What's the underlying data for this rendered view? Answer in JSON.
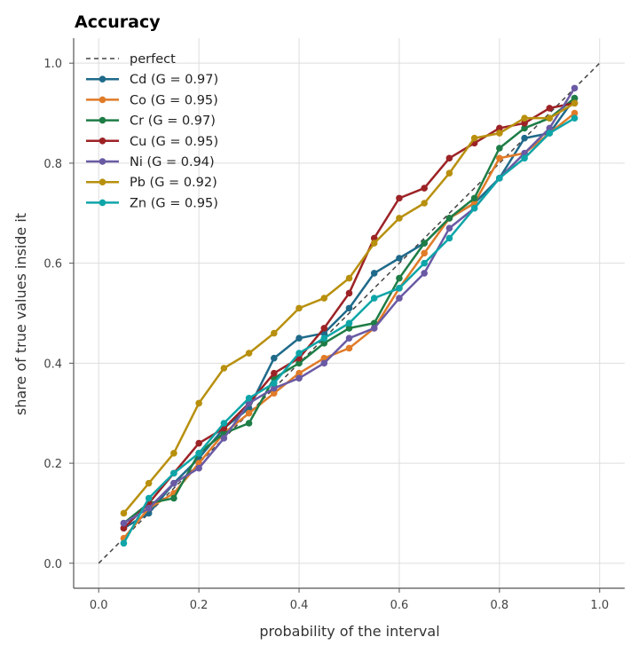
{
  "chart_data": {
    "type": "line",
    "title": "Accuracy",
    "xlabel": "probability of the interval",
    "ylabel": "share of true values inside it",
    "xlim": [
      -0.05,
      1.05
    ],
    "ylim": [
      -0.05,
      1.05
    ],
    "xticks": [
      "0.0",
      "0.2",
      "0.4",
      "0.6",
      "0.8",
      "1.0"
    ],
    "yticks": [
      "0.0",
      "0.2",
      "0.4",
      "0.6",
      "0.8",
      "1.0"
    ],
    "grid": true,
    "legend_position": "top-left",
    "reference": {
      "name": "perfect",
      "x": [
        0,
        1
      ],
      "y": [
        0,
        1
      ],
      "color": "#444444",
      "dash": true
    },
    "x": [
      0.05,
      0.1,
      0.15,
      0.2,
      0.25,
      0.3,
      0.35,
      0.4,
      0.45,
      0.5,
      0.55,
      0.6,
      0.65,
      0.7,
      0.75,
      0.8,
      0.85,
      0.9,
      0.95
    ],
    "series": [
      {
        "name": "Cd (G = 0.97)",
        "color": "#1f6a8a",
        "values": [
          0.07,
          0.1,
          0.16,
          0.21,
          0.27,
          0.31,
          0.41,
          0.45,
          0.46,
          0.51,
          0.58,
          0.61,
          0.64,
          0.69,
          0.72,
          0.77,
          0.85,
          0.86,
          0.93
        ]
      },
      {
        "name": "Co (G = 0.95)",
        "color": "#e07b27",
        "values": [
          0.05,
          0.11,
          0.14,
          0.2,
          0.26,
          0.3,
          0.34,
          0.38,
          0.41,
          0.43,
          0.47,
          0.55,
          0.62,
          0.69,
          0.72,
          0.81,
          0.82,
          0.86,
          0.9
        ]
      },
      {
        "name": "Cr (G = 0.97)",
        "color": "#1e7d46",
        "values": [
          0.08,
          0.12,
          0.13,
          0.22,
          0.26,
          0.28,
          0.37,
          0.4,
          0.44,
          0.47,
          0.48,
          0.57,
          0.64,
          0.69,
          0.73,
          0.83,
          0.87,
          0.89,
          0.93
        ]
      },
      {
        "name": "Cu (G = 0.95)",
        "color": "#9c2226",
        "values": [
          0.07,
          0.12,
          0.18,
          0.24,
          0.27,
          0.32,
          0.38,
          0.41,
          0.47,
          0.54,
          0.65,
          0.73,
          0.75,
          0.81,
          0.84,
          0.87,
          0.88,
          0.91,
          0.92
        ]
      },
      {
        "name": "Ni (G = 0.94)",
        "color": "#6a5aa4",
        "values": [
          0.08,
          0.11,
          0.16,
          0.19,
          0.25,
          0.32,
          0.35,
          0.37,
          0.4,
          0.45,
          0.47,
          0.53,
          0.58,
          0.67,
          0.71,
          0.77,
          0.82,
          0.87,
          0.95
        ]
      },
      {
        "name": "Pb (G = 0.92)",
        "color": "#b8900e",
        "values": [
          0.1,
          0.16,
          0.22,
          0.32,
          0.39,
          0.42,
          0.46,
          0.51,
          0.53,
          0.57,
          0.64,
          0.69,
          0.72,
          0.78,
          0.85,
          0.86,
          0.89,
          0.89,
          0.92
        ]
      },
      {
        "name": "Zn (G = 0.95)",
        "color": "#0ea5a8",
        "values": [
          0.04,
          0.13,
          0.18,
          0.22,
          0.28,
          0.33,
          0.36,
          0.42,
          0.45,
          0.48,
          0.53,
          0.55,
          0.6,
          0.65,
          0.71,
          0.77,
          0.81,
          0.86,
          0.89
        ]
      }
    ]
  }
}
